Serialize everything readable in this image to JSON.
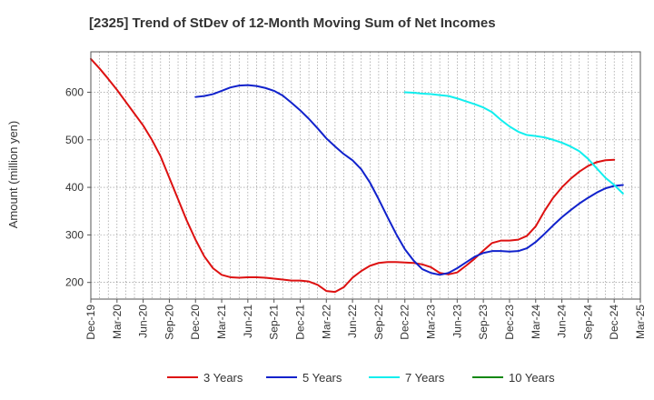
{
  "chart_data": {
    "type": "line",
    "title": "[2325]  Trend of StDev of 12-Month Moving Sum of Net Incomes",
    "ylabel": "Amount (million yen)",
    "xlabel": "",
    "ylim": [
      165,
      685
    ],
    "yticks": [
      200,
      300,
      400,
      500,
      600
    ],
    "x_start": "Dec-19",
    "x_end": "Mar-25",
    "xticks": [
      "Dec-19",
      "Mar-20",
      "Jun-20",
      "Sep-20",
      "Dec-20",
      "Mar-21",
      "Jun-21",
      "Sep-21",
      "Dec-21",
      "Mar-22",
      "Jun-22",
      "Sep-22",
      "Dec-22",
      "Mar-23",
      "Jun-23",
      "Sep-23",
      "Dec-23",
      "Mar-24",
      "Jun-24",
      "Sep-24",
      "Dec-24",
      "Mar-25"
    ],
    "grid": true,
    "legend_position": "bottom",
    "series": [
      {
        "name": "3 Years",
        "color": "#dd1111",
        "points": [
          [
            "Dec-19",
            670
          ],
          [
            "Jan-20",
            650
          ],
          [
            "Feb-20",
            628
          ],
          [
            "Mar-20",
            605
          ],
          [
            "Apr-20",
            580
          ],
          [
            "May-20",
            555
          ],
          [
            "Jun-20",
            530
          ],
          [
            "Jul-20",
            500
          ],
          [
            "Aug-20",
            465
          ],
          [
            "Sep-20",
            420
          ],
          [
            "Oct-20",
            375
          ],
          [
            "Nov-20",
            330
          ],
          [
            "Dec-20",
            290
          ],
          [
            "Jan-21",
            255
          ],
          [
            "Feb-21",
            230
          ],
          [
            "Mar-21",
            216
          ],
          [
            "Apr-21",
            211
          ],
          [
            "May-21",
            210
          ],
          [
            "Jun-21",
            211
          ],
          [
            "Jul-21",
            211
          ],
          [
            "Aug-21",
            210
          ],
          [
            "Sep-21",
            208
          ],
          [
            "Oct-21",
            206
          ],
          [
            "Nov-21",
            204
          ],
          [
            "Dec-21",
            204
          ],
          [
            "Jan-22",
            202
          ],
          [
            "Feb-22",
            195
          ],
          [
            "Mar-22",
            182
          ],
          [
            "Apr-22",
            180
          ],
          [
            "May-22",
            190
          ],
          [
            "Jun-22",
            210
          ],
          [
            "Jul-22",
            224
          ],
          [
            "Aug-22",
            235
          ],
          [
            "Sep-22",
            241
          ],
          [
            "Oct-22",
            243
          ],
          [
            "Nov-22",
            243
          ],
          [
            "Dec-22",
            242
          ],
          [
            "Jan-23",
            241
          ],
          [
            "Feb-23",
            238
          ],
          [
            "Mar-23",
            232
          ],
          [
            "Apr-23",
            220
          ],
          [
            "May-23",
            217
          ],
          [
            "Jun-23",
            221
          ],
          [
            "Jul-23",
            235
          ],
          [
            "Aug-23",
            250
          ],
          [
            "Sep-23",
            267
          ],
          [
            "Oct-23",
            283
          ],
          [
            "Nov-23",
            288
          ],
          [
            "Dec-23",
            288
          ],
          [
            "Jan-24",
            290
          ],
          [
            "Feb-24",
            298
          ],
          [
            "Mar-24",
            318
          ],
          [
            "Apr-24",
            350
          ],
          [
            "May-24",
            378
          ],
          [
            "Jun-24",
            400
          ],
          [
            "Jul-24",
            418
          ],
          [
            "Aug-24",
            433
          ],
          [
            "Sep-24",
            445
          ],
          [
            "Oct-24",
            453
          ],
          [
            "Nov-24",
            457
          ],
          [
            "Dec-24",
            458
          ]
        ]
      },
      {
        "name": "5 Years",
        "color": "#1122cc",
        "points": [
          [
            "Dec-20",
            590
          ],
          [
            "Jan-21",
            592
          ],
          [
            "Feb-21",
            596
          ],
          [
            "Mar-21",
            603
          ],
          [
            "Apr-21",
            610
          ],
          [
            "May-21",
            614
          ],
          [
            "Jun-21",
            615
          ],
          [
            "Jul-21",
            613
          ],
          [
            "Aug-21",
            609
          ],
          [
            "Sep-21",
            603
          ],
          [
            "Oct-21",
            593
          ],
          [
            "Nov-21",
            578
          ],
          [
            "Dec-21",
            562
          ],
          [
            "Jan-22",
            544
          ],
          [
            "Feb-22",
            524
          ],
          [
            "Mar-22",
            503
          ],
          [
            "Apr-22",
            486
          ],
          [
            "May-22",
            470
          ],
          [
            "Jun-22",
            457
          ],
          [
            "Jul-22",
            438
          ],
          [
            "Aug-22",
            410
          ],
          [
            "Sep-22",
            375
          ],
          [
            "Oct-22",
            338
          ],
          [
            "Nov-22",
            302
          ],
          [
            "Dec-22",
            270
          ],
          [
            "Jan-23",
            246
          ],
          [
            "Feb-23",
            228
          ],
          [
            "Mar-23",
            220
          ],
          [
            "Apr-23",
            216
          ],
          [
            "May-23",
            220
          ],
          [
            "Jun-23",
            230
          ],
          [
            "Jul-23",
            242
          ],
          [
            "Aug-23",
            254
          ],
          [
            "Sep-23",
            262
          ],
          [
            "Oct-23",
            266
          ],
          [
            "Nov-23",
            266
          ],
          [
            "Dec-23",
            265
          ],
          [
            "Jan-24",
            266
          ],
          [
            "Feb-24",
            272
          ],
          [
            "Mar-24",
            285
          ],
          [
            "Apr-24",
            302
          ],
          [
            "May-24",
            320
          ],
          [
            "Jun-24",
            337
          ],
          [
            "Jul-24",
            352
          ],
          [
            "Aug-24",
            366
          ],
          [
            "Sep-24",
            378
          ],
          [
            "Oct-24",
            389
          ],
          [
            "Nov-24",
            398
          ],
          [
            "Dec-24",
            403
          ],
          [
            "Jan-25",
            405
          ]
        ]
      },
      {
        "name": "7 Years",
        "color": "#11eeee",
        "points": [
          [
            "Dec-22",
            600
          ],
          [
            "Jan-23",
            599
          ],
          [
            "Feb-23",
            597
          ],
          [
            "Mar-23",
            596
          ],
          [
            "Apr-23",
            594
          ],
          [
            "May-23",
            592
          ],
          [
            "Jun-23",
            587
          ],
          [
            "Jul-23",
            581
          ],
          [
            "Aug-23",
            575
          ],
          [
            "Sep-23",
            568
          ],
          [
            "Oct-23",
            558
          ],
          [
            "Nov-23",
            542
          ],
          [
            "Dec-23",
            528
          ],
          [
            "Jan-24",
            517
          ],
          [
            "Feb-24",
            510
          ],
          [
            "Mar-24",
            508
          ],
          [
            "Apr-24",
            505
          ],
          [
            "May-24",
            500
          ],
          [
            "Jun-24",
            494
          ],
          [
            "Jul-24",
            486
          ],
          [
            "Aug-24",
            476
          ],
          [
            "Sep-24",
            460
          ],
          [
            "Oct-24",
            440
          ],
          [
            "Nov-24",
            420
          ],
          [
            "Dec-24",
            405
          ],
          [
            "Jan-25",
            387
          ]
        ]
      },
      {
        "name": "10 Years",
        "color": "#118811",
        "points": []
      }
    ]
  }
}
